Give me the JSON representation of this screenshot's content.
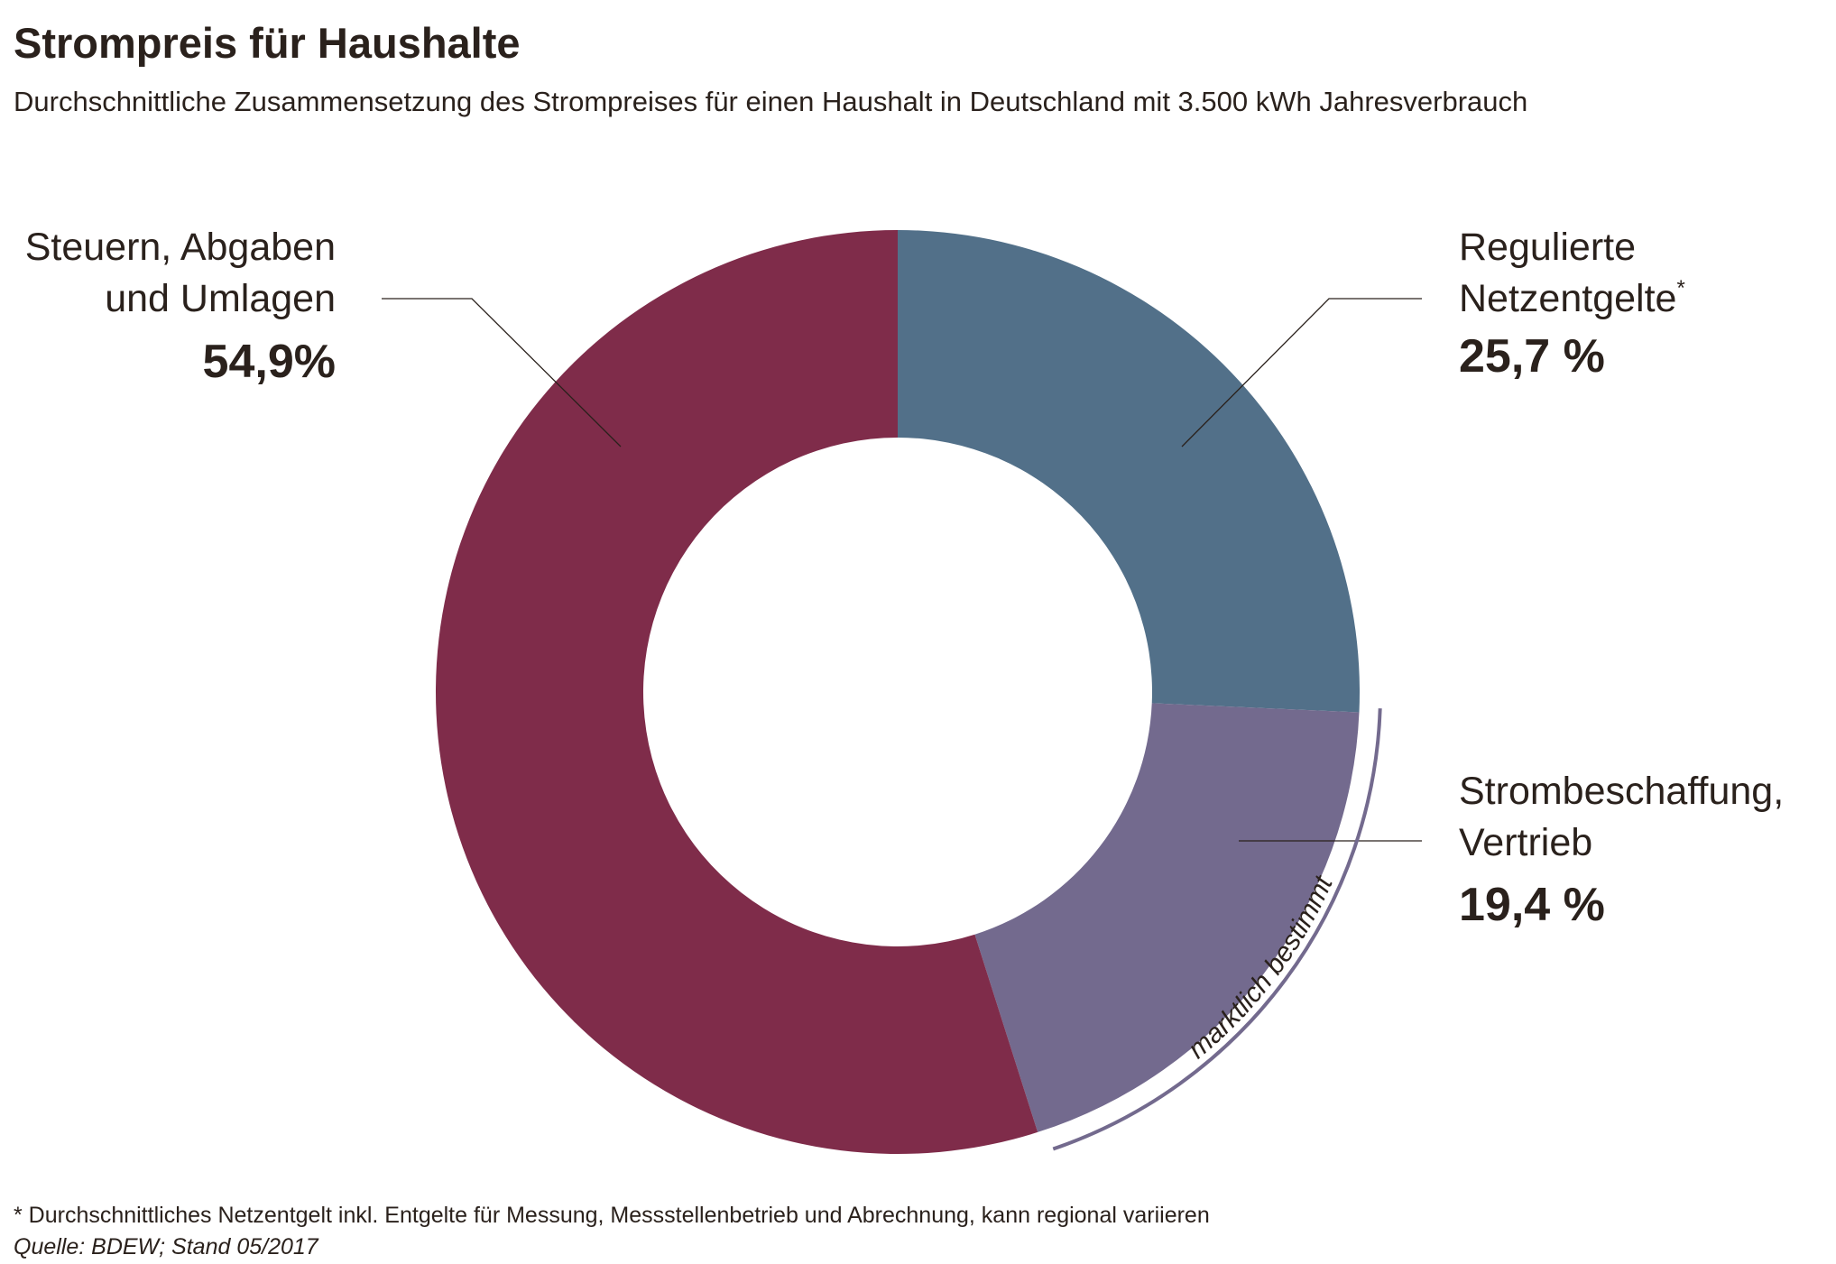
{
  "chart_data": {
    "type": "pie",
    "variant": "donut",
    "title": "Strompreis für Haushalte",
    "subtitle": "Durchschnittliche Zusammensetzung des Strompreises für einen Haushalt in Deutschland mit 3.500 kWh Jahresverbrauch",
    "slices": [
      {
        "label_lines": [
          "Regulierte",
          "Netzentgelte"
        ],
        "footnote_mark": "*",
        "value": 25.7,
        "value_label": "25,7 %",
        "color": "#527089"
      },
      {
        "label_lines": [
          "Strombeschaffung,",
          "Vertrieb"
        ],
        "value": 19.4,
        "value_label": "19,4 %",
        "color": "#736a8e"
      },
      {
        "label_lines": [
          "Steuern, Abgaben",
          "und Umlagen"
        ],
        "value": 54.9,
        "value_label": "54,9%",
        "color": "#7f2c4a"
      }
    ],
    "start": "top",
    "direction": "clockwise",
    "bracket_annotation": {
      "text": "marktlich bestimmt",
      "color": "#736a8e"
    },
    "footnote": "* Durchschnittliches Netzentgelt inkl. Entgelte für Messung, Messstellenbetrieb und Abrechnung, kann regional variieren",
    "source": "Quelle: BDEW; Stand 05/2017"
  }
}
